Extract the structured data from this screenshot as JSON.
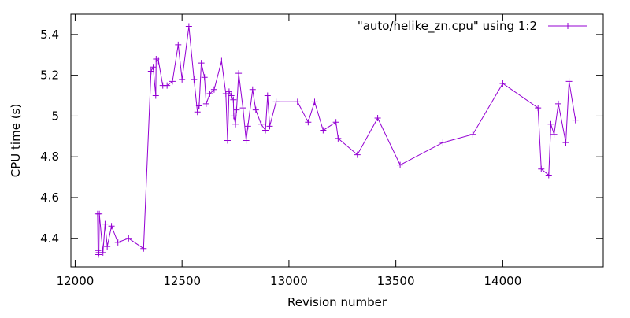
{
  "chart_data": {
    "type": "line",
    "title": "",
    "xlabel": "Revision number",
    "ylabel": "CPU time (s)",
    "xlim": [
      11980,
      14470
    ],
    "ylim": [
      4.26,
      5.5
    ],
    "x_ticks": [
      12000,
      12500,
      13000,
      13500,
      14000
    ],
    "x_tick_labels": [
      "12000",
      "12500",
      "13000",
      "13500",
      "14000"
    ],
    "y_ticks": [
      4.4,
      4.6,
      4.8,
      5.0,
      5.2,
      5.4
    ],
    "y_tick_labels": [
      "4.4",
      "4.6",
      "4.8",
      "5",
      "5.2",
      "5.4"
    ],
    "grid": false,
    "legend_position": "top-right",
    "series": [
      {
        "name": "\"auto/helike_zn.cpu\" using 1:2",
        "color": "#9400d3",
        "marker": "plus",
        "points": [
          [
            12105,
            4.52
          ],
          [
            12107,
            4.34
          ],
          [
            12109,
            4.32
          ],
          [
            12111,
            4.33
          ],
          [
            12113,
            4.52
          ],
          [
            12130,
            4.33
          ],
          [
            12140,
            4.47
          ],
          [
            12150,
            4.36
          ],
          [
            12170,
            4.46
          ],
          [
            12200,
            4.38
          ],
          [
            12250,
            4.4
          ],
          [
            12320,
            4.35
          ],
          [
            12355,
            5.22
          ],
          [
            12365,
            5.24
          ],
          [
            12377,
            5.1
          ],
          [
            12379,
            5.28
          ],
          [
            12390,
            5.27
          ],
          [
            12410,
            5.15
          ],
          [
            12430,
            5.15
          ],
          [
            12455,
            5.17
          ],
          [
            12482,
            5.35
          ],
          [
            12500,
            5.18
          ],
          [
            12532,
            5.44
          ],
          [
            12556,
            5.18
          ],
          [
            12572,
            5.02
          ],
          [
            12580,
            5.05
          ],
          [
            12590,
            5.26
          ],
          [
            12605,
            5.19
          ],
          [
            12613,
            5.06
          ],
          [
            12630,
            5.11
          ],
          [
            12650,
            5.13
          ],
          [
            12685,
            5.27
          ],
          [
            12705,
            5.11
          ],
          [
            12713,
            4.88
          ],
          [
            12720,
            5.12
          ],
          [
            12730,
            5.1
          ],
          [
            12740,
            5.08
          ],
          [
            12742,
            5.0
          ],
          [
            12750,
            4.96
          ],
          [
            12755,
            5.03
          ],
          [
            12765,
            5.21
          ],
          [
            12785,
            5.04
          ],
          [
            12800,
            4.88
          ],
          [
            12808,
            4.95
          ],
          [
            12830,
            5.13
          ],
          [
            12845,
            5.03
          ],
          [
            12870,
            4.96
          ],
          [
            12890,
            4.93
          ],
          [
            12900,
            5.1
          ],
          [
            12910,
            4.95
          ],
          [
            12940,
            5.07
          ],
          [
            13040,
            5.07
          ],
          [
            13090,
            4.97
          ],
          [
            13120,
            5.07
          ],
          [
            13160,
            4.93
          ],
          [
            13220,
            4.97
          ],
          [
            13230,
            4.89
          ],
          [
            13320,
            4.81
          ],
          [
            13415,
            4.99
          ],
          [
            13520,
            4.76
          ],
          [
            13720,
            4.87
          ],
          [
            13860,
            4.91
          ],
          [
            14000,
            5.16
          ],
          [
            14165,
            5.04
          ],
          [
            14180,
            4.74
          ],
          [
            14215,
            4.71
          ],
          [
            14225,
            4.96
          ],
          [
            14240,
            4.91
          ],
          [
            14260,
            5.06
          ],
          [
            14295,
            4.87
          ],
          [
            14310,
            5.17
          ],
          [
            14340,
            4.98
          ]
        ]
      }
    ]
  }
}
